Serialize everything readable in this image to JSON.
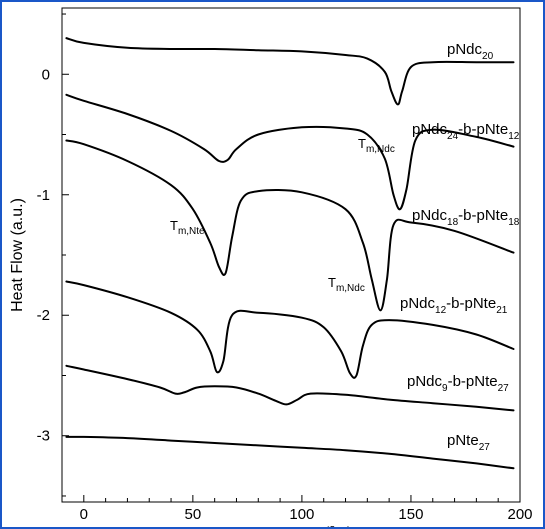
{
  "chart_data": {
    "type": "line",
    "title": "",
    "xlabel": "Temperature (°C)",
    "ylabel": "Heat Flow (a.u.)",
    "xlim": [
      -10,
      200
    ],
    "ylim": [
      -3.55,
      0.55
    ],
    "x_ticks": [
      0,
      50,
      100,
      150,
      200
    ],
    "y_ticks": [
      0,
      -1,
      -2,
      -3
    ],
    "grid": false,
    "series": [
      {
        "name": "pNdc20",
        "label_main": "pNdc",
        "label_sub": "20",
        "x": [
          -8,
          0,
          20,
          40,
          60,
          80,
          100,
          120,
          130,
          138,
          141,
          144,
          146,
          150,
          160,
          180,
          197
        ],
        "y": [
          0.3,
          0.26,
          0.22,
          0.21,
          0.21,
          0.2,
          0.19,
          0.16,
          0.13,
          0.02,
          -0.14,
          -0.25,
          -0.14,
          0.06,
          0.1,
          0.1,
          0.1
        ]
      },
      {
        "name": "pNdc24-b-pNte12",
        "label_main": "pNdc",
        "label_sub": "24",
        "label_mid": "-b-pNte",
        "label_sub2": "12",
        "x": [
          -8,
          0,
          20,
          40,
          55,
          62,
          66,
          70,
          80,
          100,
          120,
          130,
          138,
          142,
          145,
          148,
          152,
          160,
          180,
          197
        ],
        "y": [
          -0.17,
          -0.22,
          -0.33,
          -0.47,
          -0.62,
          -0.72,
          -0.71,
          -0.62,
          -0.5,
          -0.44,
          -0.45,
          -0.5,
          -0.7,
          -1.0,
          -1.12,
          -0.95,
          -0.55,
          -0.46,
          -0.52,
          -0.6
        ]
      },
      {
        "name": "pNdc18-b-pNte18",
        "label_main": "pNdc",
        "label_sub": "18",
        "label_mid": "-b-pNte",
        "label_sub2": "18",
        "x": [
          -8,
          0,
          20,
          40,
          50,
          58,
          62,
          65,
          68,
          72,
          80,
          100,
          120,
          128,
          132,
          136,
          139,
          142,
          150,
          170,
          197
        ],
        "y": [
          -0.55,
          -0.58,
          -0.72,
          -0.92,
          -1.12,
          -1.4,
          -1.6,
          -1.65,
          -1.35,
          -1.05,
          -0.97,
          -0.98,
          -1.12,
          -1.4,
          -1.7,
          -1.96,
          -1.7,
          -1.25,
          -1.23,
          -1.3,
          -1.48
        ]
      },
      {
        "name": "pNdc12-b-pNte21",
        "label_main": "pNdc",
        "label_sub": "12",
        "label_mid": "-b-pNte",
        "label_sub2": "21",
        "x": [
          -8,
          0,
          20,
          40,
          52,
          58,
          61,
          64,
          68,
          80,
          100,
          110,
          118,
          122,
          125,
          128,
          132,
          140,
          160,
          180,
          197
        ],
        "y": [
          -1.72,
          -1.75,
          -1.85,
          -1.98,
          -2.12,
          -2.3,
          -2.47,
          -2.38,
          -2.0,
          -1.98,
          -2.02,
          -2.1,
          -2.3,
          -2.48,
          -2.5,
          -2.25,
          -2.08,
          -2.04,
          -2.08,
          -2.16,
          -2.28
        ]
      },
      {
        "name": "pNdc9-b-pNte27",
        "label_main": "pNdc",
        "label_sub": "9",
        "label_mid": "-b-pNte",
        "label_sub2": "27",
        "x": [
          -8,
          0,
          20,
          35,
          42,
          46,
          52,
          60,
          70,
          80,
          88,
          93,
          98,
          104,
          120,
          140,
          160,
          180,
          197
        ],
        "y": [
          -2.42,
          -2.45,
          -2.53,
          -2.6,
          -2.65,
          -2.64,
          -2.6,
          -2.59,
          -2.6,
          -2.65,
          -2.71,
          -2.74,
          -2.7,
          -2.65,
          -2.66,
          -2.7,
          -2.73,
          -2.76,
          -2.79
        ]
      },
      {
        "name": "pNte27",
        "label_main": "pNte",
        "label_sub": "27",
        "x": [
          -8,
          0,
          20,
          40,
          60,
          80,
          100,
          120,
          140,
          160,
          180,
          197
        ],
        "y": [
          -3.01,
          -3.01,
          -3.02,
          -3.04,
          -3.06,
          -3.08,
          -3.1,
          -3.12,
          -3.15,
          -3.19,
          -3.23,
          -3.27
        ]
      }
    ],
    "annotations": [
      {
        "text_main": "T",
        "text_sub": "m,Ndc",
        "near": "pNdc20 melting dip"
      },
      {
        "text_main": "T",
        "text_sub": "m,Nte",
        "near": "pNdc18-b-pNte18 first melting dip"
      },
      {
        "text_main": "T",
        "text_sub": "m,Ndc",
        "near": "pNdc18-b-pNte18 second melting dip"
      }
    ]
  }
}
